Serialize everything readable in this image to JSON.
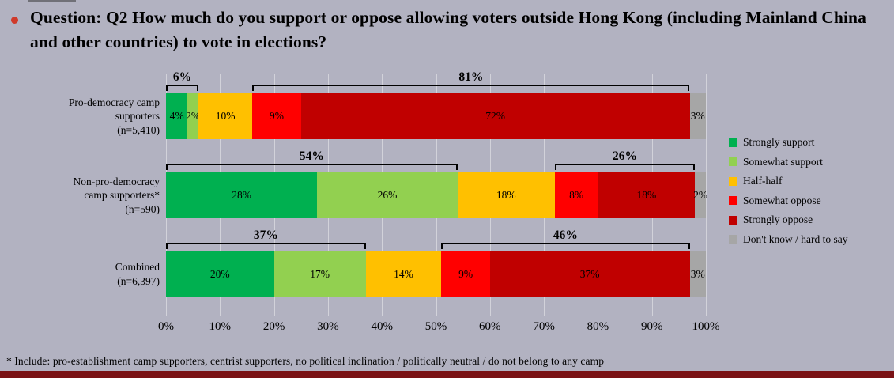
{
  "slide": {
    "background_color": "#b2b2c1",
    "bullet_color": "#cf3a2b",
    "title": "Question: Q2 How much do you support or oppose allowing voters outside Hong Kong (including Mainland China and other countries) to vote in elections?",
    "footnote": "*  Include: pro-establishment camp supporters, centrist supporters, no political inclination / politically neutral / do not belong to any camp",
    "footer_bar_color": "#7a1215"
  },
  "chart_data": {
    "type": "bar",
    "orientation": "horizontal-stacked",
    "unit": "%",
    "xlim": [
      0,
      100
    ],
    "grid": true,
    "legend_position": "right",
    "x_ticks": [
      "0%",
      "10%",
      "20%",
      "30%",
      "40%",
      "50%",
      "60%",
      "70%",
      "80%",
      "90%",
      "100%"
    ],
    "series": [
      {
        "name": "Strongly support",
        "color": "#00B050"
      },
      {
        "name": "Somewhat support",
        "color": "#92D050"
      },
      {
        "name": "Half-half",
        "color": "#FFC000"
      },
      {
        "name": "Somewhat oppose",
        "color": "#FF0000"
      },
      {
        "name": "Strongly oppose",
        "color": "#C00000"
      },
      {
        "name": "Don't know / hard to say",
        "color": "#A6A6A6"
      }
    ],
    "categories": [
      {
        "label": "Pro-democracy camp\nsupporters\n(n=5,410)",
        "values": [
          4,
          2,
          10,
          9,
          72,
          3
        ],
        "segment_labels": [
          "4%",
          "2%",
          "10%",
          "9%",
          "72%",
          "3%"
        ],
        "brackets": [
          {
            "label": "6%",
            "from": 0,
            "to": 1
          },
          {
            "label": "81%",
            "from": 3,
            "to": 4
          }
        ]
      },
      {
        "label": "Non-pro-democracy\ncamp supporters*\n(n=590)",
        "values": [
          28,
          26,
          18,
          8,
          18,
          2
        ],
        "segment_labels": [
          "28%",
          "26%",
          "18%",
          "8%",
          "18%",
          "2%"
        ],
        "brackets": [
          {
            "label": "54%",
            "from": 0,
            "to": 1
          },
          {
            "label": "26%",
            "from": 3,
            "to": 4
          }
        ]
      },
      {
        "label": "Combined\n(n=6,397)",
        "values": [
          20,
          17,
          14,
          9,
          37,
          3
        ],
        "segment_labels": [
          "20%",
          "17%",
          "14%",
          "9%",
          "37%",
          "3%"
        ],
        "brackets": [
          {
            "label": "37%",
            "from": 0,
            "to": 1
          },
          {
            "label": "46%",
            "from": 3,
            "to": 4
          }
        ]
      }
    ]
  }
}
